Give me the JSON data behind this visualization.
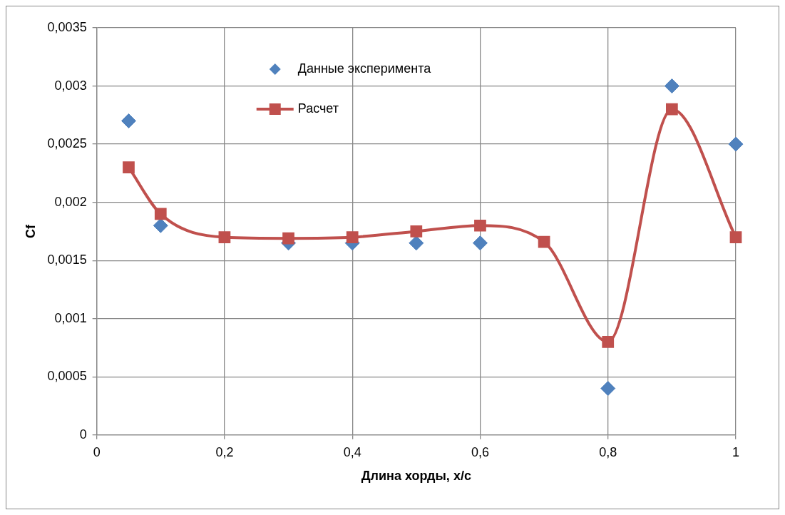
{
  "chart_data": {
    "type": "scatter",
    "xlabel": "Длина хорды, x/c",
    "ylabel": "Cf",
    "xlim": [
      0,
      1
    ],
    "xticks": [
      0,
      {
        "value": 0.2,
        "label": "0,2"
      },
      {
        "value": 0.4,
        "label": "0,4"
      },
      {
        "value": 0.6,
        "label": "0,6"
      },
      {
        "value": 0.8,
        "label": "0,8"
      },
      1
    ],
    "ylim": [
      0,
      0.0035
    ],
    "yticks": [
      0,
      {
        "value": 0.0005,
        "label": "0,0005"
      },
      {
        "value": 0.001,
        "label": "0,001"
      },
      {
        "value": 0.0015,
        "label": "0,0015"
      },
      {
        "value": 0.002,
        "label": "0,002"
      },
      {
        "value": 0.0025,
        "label": "0,0025"
      },
      {
        "value": 0.003,
        "label": "0,003"
      },
      {
        "value": 0.0035,
        "label": "0,0035"
      }
    ],
    "grid": true,
    "legend": "top",
    "series": [
      {
        "name": "Данные эксперимента",
        "type": "scatter",
        "marker": "diamond",
        "color": "#4f81bd",
        "x": [
          0.05,
          0.1,
          0.2,
          0.3,
          0.4,
          0.5,
          0.6,
          0.7,
          0.8,
          0.9,
          1
        ],
        "values": [
          0.0027,
          0.0018,
          null,
          0.00165,
          0.00165,
          0.00165,
          0.00165,
          null,
          0.0004,
          0.003,
          0.0025
        ]
      },
      {
        "name": "Расчет",
        "type": "line",
        "marker": "square",
        "line_style": "solid",
        "color": "#c0504d",
        "x": [
          0.05,
          0.1,
          0.2,
          0.3,
          0.4,
          0.5,
          0.6,
          0.7,
          0.8,
          0.9,
          1
        ],
        "values": [
          0.0023,
          0.0019,
          0.0017,
          0.00169,
          0.0017,
          0.00175,
          0.0018,
          0.00166,
          0.0008,
          0.0028,
          0.0017
        ]
      }
    ]
  }
}
